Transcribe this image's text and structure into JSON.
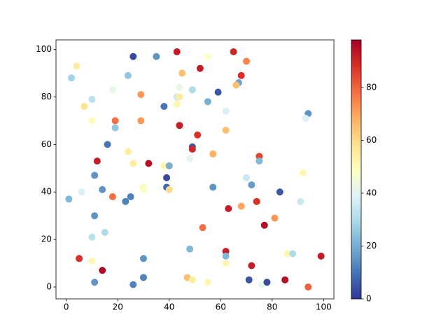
{
  "chart_data": {
    "type": "scatter",
    "x": [
      26,
      35,
      43,
      65,
      55,
      4,
      2,
      24,
      45,
      52,
      70,
      68,
      67,
      66,
      59,
      49,
      44,
      43,
      44,
      43,
      38,
      29,
      18,
      10,
      7,
      55,
      62,
      94,
      93,
      19,
      19,
      10,
      29,
      44,
      62,
      51,
      16,
      49,
      49,
      24,
      57,
      75,
      75,
      12,
      32,
      26,
      48,
      38,
      40,
      11,
      39,
      70,
      92,
      6,
      14,
      30,
      30,
      39,
      40,
      57,
      72,
      83,
      1,
      25,
      23,
      18,
      63,
      68,
      74,
      91,
      11,
      81,
      77,
      53,
      15,
      10,
      48,
      62,
      62,
      86,
      88,
      5,
      10,
      30,
      62,
      72,
      99,
      14,
      30,
      47,
      49,
      55,
      71,
      76,
      78,
      85,
      94,
      11,
      26
    ],
    "y": [
      97,
      97,
      99,
      99,
      97,
      93,
      88,
      89,
      90,
      92,
      95,
      89,
      86,
      85,
      82,
      83,
      84,
      80,
      80,
      77,
      76,
      81,
      83,
      79,
      76,
      78,
      74,
      73,
      71,
      70,
      67,
      70,
      70,
      68,
      66,
      64,
      60,
      59,
      58,
      57,
      56,
      55,
      53,
      53,
      52,
      52,
      54,
      51,
      51,
      47,
      46,
      46,
      48,
      40,
      41,
      42,
      41,
      42,
      41,
      42,
      43,
      40,
      37,
      38,
      36,
      38,
      33,
      34,
      36,
      36,
      30,
      29,
      26,
      25,
      23,
      21,
      16,
      15,
      13,
      14,
      14,
      12,
      11,
      12,
      10,
      9,
      13,
      7,
      4,
      4,
      3,
      2,
      3,
      1,
      2,
      3,
      0,
      2,
      1
    ],
    "c": [
      3,
      15,
      92,
      90,
      48,
      55,
      28,
      25,
      65,
      92,
      75,
      88,
      18,
      65,
      5,
      30,
      42,
      35,
      55,
      52,
      10,
      72,
      42,
      32,
      58,
      20,
      38,
      15,
      38,
      78,
      25,
      50,
      72,
      92,
      65,
      88,
      10,
      5,
      90,
      55,
      68,
      85,
      22,
      92,
      95,
      55,
      40,
      52,
      20,
      15,
      3,
      35,
      52,
      38,
      15,
      52,
      48,
      8,
      60,
      15,
      17,
      5,
      22,
      12,
      12,
      78,
      92,
      70,
      88,
      35,
      15,
      72,
      95,
      78,
      30,
      32,
      22,
      92,
      22,
      52,
      30,
      88,
      52,
      15,
      52,
      92,
      92,
      96,
      12,
      65,
      55,
      52,
      5,
      42,
      3,
      95,
      80,
      15,
      12
    ],
    "colormap": [
      "#313695",
      "#4575b4",
      "#74add1",
      "#abd9e9",
      "#e0f3f8",
      "#ffffbf",
      "#fee090",
      "#fdae61",
      "#f46d43",
      "#d73027",
      "#a50026"
    ],
    "xlim": [
      -4,
      104
    ],
    "ylim": [
      -5,
      104
    ],
    "xticks": [
      0,
      20,
      40,
      60,
      80,
      100
    ],
    "yticks": [
      0,
      20,
      40,
      60,
      80,
      100
    ],
    "clim": [
      0,
      98
    ],
    "cticks": [
      0,
      20,
      40,
      60,
      80
    ]
  }
}
